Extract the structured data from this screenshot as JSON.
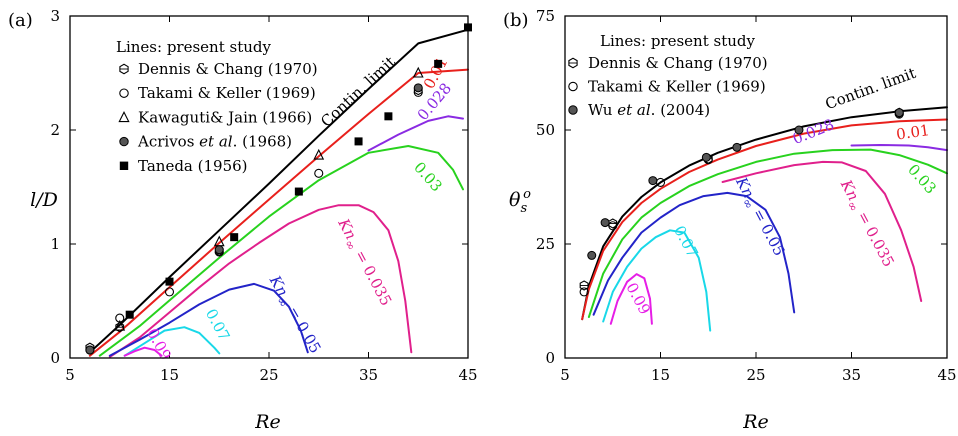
{
  "chart_data": [
    {
      "id": "a",
      "type": "line",
      "panel_label": "(a)",
      "xlabel": "Re",
      "ylabel": "l/D",
      "xlim": [
        5,
        45
      ],
      "ylim": [
        0,
        3
      ],
      "xticks": [
        "5",
        "15",
        "25",
        "35",
        "45"
      ],
      "xticks_values": [
        5,
        15,
        25,
        35,
        45
      ],
      "yticks": [
        "0",
        "1",
        "2",
        "3"
      ],
      "yticks_values": [
        0,
        1,
        2,
        3
      ],
      "legend_title": "Lines: present study",
      "legend_position": "top-left",
      "series": [
        {
          "label": "Contin. limit",
          "color": "#000000",
          "x": [
            7,
            10,
            15,
            20,
            25,
            30,
            35,
            40,
            45
          ],
          "y": [
            0.05,
            0.29,
            0.71,
            1.12,
            1.53,
            1.95,
            2.36,
            2.76,
            2.88
          ]
        },
        {
          "label": "0.01",
          "color": "#e8201c",
          "x": [
            7,
            10,
            15,
            20,
            25,
            30,
            35,
            40,
            45
          ],
          "y": [
            0.02,
            0.23,
            0.62,
            1.01,
            1.39,
            1.77,
            2.14,
            2.5,
            2.53
          ]
        },
        {
          "label": "0.028",
          "color": "#8a2be2",
          "x": [
            35,
            38,
            41,
            43,
            44.5
          ],
          "y": [
            1.82,
            1.96,
            2.08,
            2.12,
            2.1
          ]
        },
        {
          "label": "0.03",
          "color": "#28d21e",
          "x": [
            8,
            12,
            16,
            20,
            25,
            30,
            35,
            39,
            42,
            43.5,
            44.5
          ],
          "y": [
            0.02,
            0.28,
            0.58,
            0.88,
            1.24,
            1.56,
            1.8,
            1.86,
            1.8,
            1.65,
            1.48
          ]
        },
        {
          "label": "Kn∞ = 0.035",
          "color": "#e0208c",
          "x": [
            9,
            12,
            15,
            18,
            21,
            24,
            27,
            30,
            32,
            34,
            35.5,
            37,
            38,
            38.7,
            39.3
          ],
          "y": [
            0.01,
            0.18,
            0.4,
            0.62,
            0.83,
            1.01,
            1.18,
            1.3,
            1.34,
            1.34,
            1.28,
            1.12,
            0.85,
            0.5,
            0.05
          ]
        },
        {
          "label": "Kn∞ = 0.05",
          "color": "#2324c8",
          "x": [
            9,
            12,
            15,
            18,
            21,
            23.5,
            25.5,
            27,
            28.2,
            28.9
          ],
          "y": [
            0.02,
            0.16,
            0.31,
            0.47,
            0.6,
            0.65,
            0.59,
            0.45,
            0.24,
            0.05
          ]
        },
        {
          "label": "0.07",
          "color": "#19d8e8",
          "x": [
            10.5,
            12.5,
            14.5,
            16.5,
            18,
            19.5,
            20
          ],
          "y": [
            0.02,
            0.13,
            0.24,
            0.27,
            0.22,
            0.09,
            0.04
          ]
        },
        {
          "label": "0.09",
          "color": "#e61ee6",
          "x": [
            10.5,
            11.5,
            12.5,
            13.5,
            14.2
          ],
          "y": [
            0.02,
            0.06,
            0.09,
            0.07,
            0.02
          ]
        }
      ],
      "markers": [
        {
          "label": "Dennis & Chang (1970)",
          "symbol": "hexagon",
          "x": [
            7,
            10,
            20,
            40
          ],
          "y": [
            0.09,
            0.27,
            0.94,
            2.35
          ]
        },
        {
          "label": "Takami & Keller (1969)",
          "symbol": "circle",
          "x": [
            7,
            10,
            15,
            20,
            30,
            40
          ],
          "y": [
            0.07,
            0.35,
            0.58,
            0.93,
            1.62,
            2.33
          ]
        },
        {
          "label": "Kawaguti& Jain (1966)",
          "symbol": "triangle",
          "x": [
            10,
            20,
            30,
            40
          ],
          "y": [
            0.28,
            1.02,
            1.78,
            2.5
          ]
        },
        {
          "label": "Acrivos et al. (1968)",
          "label_parts": [
            "Acrivos ",
            "et al",
            ". (1968)"
          ],
          "symbol": "shaded-circle",
          "x": [
            7,
            20,
            40
          ],
          "y": [
            0.07,
            0.95,
            2.37
          ]
        },
        {
          "label": "Taneda (1956)",
          "symbol": "square",
          "x": [
            11,
            15,
            21.5,
            28,
            34,
            37,
            42,
            45
          ],
          "y": [
            0.38,
            0.67,
            1.06,
            1.46,
            1.9,
            2.12,
            2.58,
            2.9
          ]
        }
      ]
    },
    {
      "id": "b",
      "type": "line",
      "panel_label": "(b)",
      "xlabel": "Re",
      "ylabel": "θ",
      "ylabel_sub": "s",
      "ylabel_sup": "o",
      "xlim": [
        5,
        45
      ],
      "ylim": [
        0,
        75
      ],
      "xticks": [
        "5",
        "15",
        "25",
        "35",
        "45"
      ],
      "xticks_values": [
        5,
        15,
        25,
        35,
        45
      ],
      "yticks": [
        "0",
        "25",
        "50",
        "75"
      ],
      "yticks_values": [
        0,
        25,
        50,
        75
      ],
      "legend_title": "Lines: present study",
      "legend_position": "top-left",
      "series": [
        {
          "label": "Contin. limit",
          "color": "#000000",
          "x": [
            6.8,
            7.5,
            9,
            11,
            13,
            15,
            18,
            21,
            25,
            30,
            35,
            40,
            45
          ],
          "y": [
            8.5,
            15.8,
            24.5,
            31,
            35.3,
            38.5,
            42.2,
            45,
            47.9,
            50.8,
            52.8,
            54.1,
            55
          ]
        },
        {
          "label": "0.01",
          "color": "#e8201c",
          "x": [
            6.8,
            7.5,
            9,
            11,
            13,
            15,
            18,
            21,
            25,
            30,
            35,
            40,
            45
          ],
          "y": [
            8.5,
            15.1,
            23.5,
            29.8,
            34,
            37.1,
            40.8,
            43.5,
            46.5,
            49.2,
            51,
            51.9,
            52.3
          ]
        },
        {
          "label": "0.028",
          "color": "#8a2be2",
          "x": [
            35,
            38,
            41,
            43,
            45
          ],
          "y": [
            46.6,
            46.7,
            46.6,
            46.2,
            45.6
          ]
        },
        {
          "label": "0.03",
          "color": "#28d21e",
          "x": [
            7.5,
            9,
            11,
            13,
            15,
            18,
            21,
            25,
            29,
            33,
            37,
            40,
            43,
            45
          ],
          "y": [
            9,
            18.5,
            26,
            30.8,
            34,
            37.7,
            40.3,
            43,
            44.8,
            45.6,
            45.7,
            44.5,
            42.4,
            40.5
          ]
        },
        {
          "label": "Kn∞ = 0.035",
          "color": "#e0208c",
          "x": [
            21.5,
            25,
            29,
            32,
            34,
            36.5,
            38.5,
            40.2,
            41.5,
            42.3
          ],
          "y": [
            38.6,
            40.5,
            42.3,
            43,
            42.9,
            41,
            36,
            28,
            20,
            12.5
          ]
        },
        {
          "label": "Kn∞ = 0.05",
          "color": "#2324c8",
          "x": [
            8,
            9.5,
            11,
            13,
            15,
            17,
            19.5,
            22,
            24,
            26,
            27.5,
            28.4,
            29
          ],
          "y": [
            9.5,
            17,
            22,
            27.5,
            30.8,
            33.5,
            35.5,
            36.2,
            35.5,
            32.5,
            26.5,
            18.5,
            10
          ]
        },
        {
          "label": "0.07",
          "color": "#19d8e8",
          "x": [
            9,
            10,
            11.5,
            13,
            14.5,
            16,
            17.5,
            19,
            19.8,
            20.2
          ],
          "y": [
            8,
            14.5,
            20,
            24,
            26.5,
            28,
            27.5,
            22,
            14.5,
            6
          ]
        },
        {
          "label": "0.09",
          "color": "#e61ee6",
          "x": [
            9.8,
            10.5,
            11.5,
            12.5,
            13.3,
            13.9,
            14.1
          ],
          "y": [
            7.5,
            12.5,
            16.7,
            18.4,
            17.5,
            13,
            7.5
          ]
        }
      ],
      "markers": [
        {
          "label": "Dennis & Chang (1970)",
          "symbol": "hexagon",
          "x": [
            7,
            10,
            20,
            40
          ],
          "y": [
            15.9,
            29.5,
            43.7,
            53.8
          ]
        },
        {
          "label": "Takami & Keller (1969)",
          "symbol": "circle",
          "x": [
            7,
            10,
            15,
            20,
            40
          ],
          "y": [
            14.5,
            29,
            38.5,
            43.5,
            53.5
          ]
        },
        {
          "label": "Wu et al. (2004)",
          "label_parts": [
            "Wu ",
            "et al",
            ". (2004)"
          ],
          "symbol": "shaded-circle",
          "x": [
            7.8,
            9.2,
            14.2,
            19.8,
            23,
            29.5,
            40
          ],
          "y": [
            22.5,
            29.7,
            38.9,
            44,
            46.2,
            50,
            53.8
          ]
        }
      ]
    }
  ]
}
